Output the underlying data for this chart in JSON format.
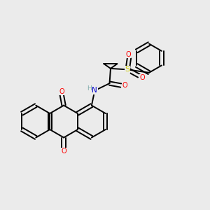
{
  "background_color": "#ebebeb",
  "bond_color": "#000000",
  "bond_width": 1.4,
  "atom_colors": {
    "O": "#ff0000",
    "N": "#0000cc",
    "S": "#cccc00",
    "H": "#7faaaa",
    "C": "#000000"
  },
  "figsize": [
    3.0,
    3.0
  ],
  "dpi": 100,
  "xlim": [
    0,
    10
  ],
  "ylim": [
    0,
    10
  ]
}
